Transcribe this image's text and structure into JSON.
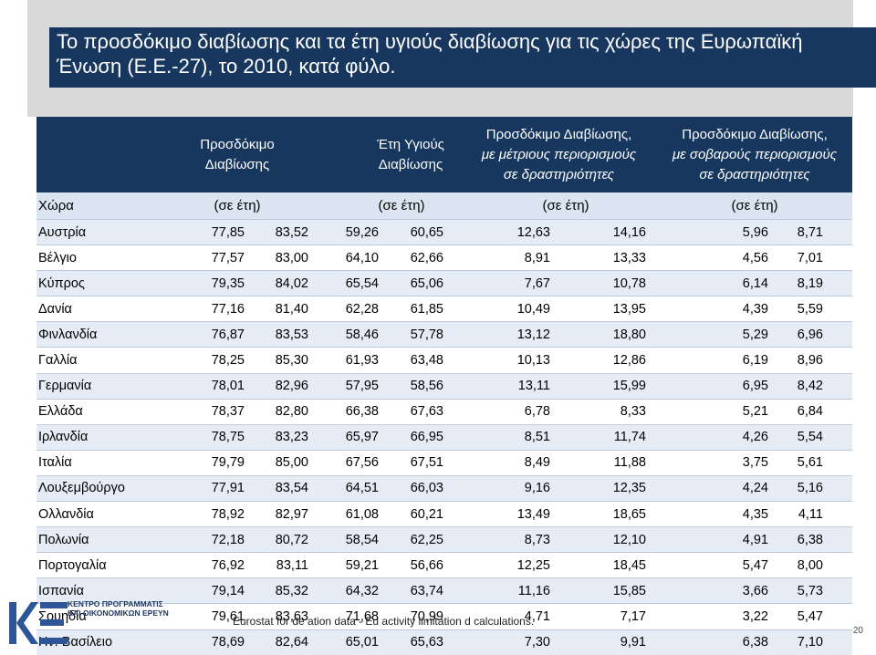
{
  "title": "Το προσδόκιμο διαβίωσης και τα έτη υγιούς διαβίωσης για τις χώρες της Ευρωπαϊκή Ένωση (Ε.Ε.-27), το 2010, κατά φύλο.",
  "headers": {
    "life_expectancy_line1": "Προσδόκιμο",
    "life_expectancy_line2": "Διαβίωσης",
    "healthy_years_line1": "Έτη Υγιούς",
    "healthy_years_line2": "Διαβίωσης",
    "moderate_line1": "Προσδόκιμο Διαβίωσης,",
    "moderate_line2": "με μέτριους περιορισμούς",
    "moderate_line3": "σε δραστηριότητες",
    "severe_line1": "Προσδόκιμο Διαβίωσης,",
    "severe_line2": "με σοβαρούς περιορισμούς",
    "severe_line3": "σε δραστηριότητες"
  },
  "units": {
    "country": "Χώρα",
    "u1": "(σε έτη)",
    "u2": "(σε έτη)",
    "u3": "(σε έτη)",
    "u4": "(σε έτη)"
  },
  "rows": [
    {
      "country": "Αυστρία",
      "v": [
        "77,85",
        "83,52",
        "59,26",
        "60,65",
        "12,63",
        "14,16",
        "5,96",
        "8,71"
      ]
    },
    {
      "country": "Βέλγιο",
      "v": [
        "77,57",
        "83,00",
        "64,10",
        "62,66",
        "8,91",
        "13,33",
        "4,56",
        "7,01"
      ]
    },
    {
      "country": "Κύπρος",
      "v": [
        "79,35",
        "84,02",
        "65,54",
        "65,06",
        "7,67",
        "10,78",
        "6,14",
        "8,19"
      ]
    },
    {
      "country": "Δανία",
      "v": [
        "77,16",
        "81,40",
        "62,28",
        "61,85",
        "10,49",
        "13,95",
        "4,39",
        "5,59"
      ]
    },
    {
      "country": "Φινλανδία",
      "v": [
        "76,87",
        "83,53",
        "58,46",
        "57,78",
        "13,12",
        "18,80",
        "5,29",
        "6,96"
      ]
    },
    {
      "country": "Γαλλία",
      "v": [
        "78,25",
        "85,30",
        "61,93",
        "63,48",
        "10,13",
        "12,86",
        "6,19",
        "8,96"
      ]
    },
    {
      "country": "Γερμανία",
      "v": [
        "78,01",
        "82,96",
        "57,95",
        "58,56",
        "13,11",
        "15,99",
        "6,95",
        "8,42"
      ]
    },
    {
      "country": "Ελλάδα",
      "v": [
        "78,37",
        "82,80",
        "66,38",
        "67,63",
        "6,78",
        "8,33",
        "5,21",
        "6,84"
      ]
    },
    {
      "country": "Ιρλανδία",
      "v": [
        "78,75",
        "83,23",
        "65,97",
        "66,95",
        "8,51",
        "11,74",
        "4,26",
        "5,54"
      ]
    },
    {
      "country": "Ιταλία",
      "v": [
        "79,79",
        "85,00",
        "67,56",
        "67,51",
        "8,49",
        "11,88",
        "3,75",
        "5,61"
      ]
    },
    {
      "country": "Λουξεμβούργο",
      "v": [
        "77,91",
        "83,54",
        "64,51",
        "66,03",
        "9,16",
        "12,35",
        "4,24",
        "5,16"
      ]
    },
    {
      "country": "Ολλανδία",
      "v": [
        "78,92",
        "82,97",
        "61,08",
        "60,21",
        "13,49",
        "18,65",
        "4,35",
        "4,11"
      ]
    },
    {
      "country": "Πολωνία",
      "v": [
        "72,18",
        "80,72",
        "58,54",
        "62,25",
        "8,73",
        "12,10",
        "4,91",
        "6,38"
      ]
    },
    {
      "country": "Πορτογαλία",
      "v": [
        "76,92",
        "83,11",
        "59,21",
        "56,66",
        "12,25",
        "18,45",
        "5,47",
        "8,00"
      ]
    },
    {
      "country": "Ισπανία",
      "v": [
        "79,14",
        "85,32",
        "64,32",
        "63,74",
        "11,16",
        "15,85",
        "3,66",
        "5,73"
      ]
    },
    {
      "country": "Σουηδία",
      "v": [
        "79,61",
        "83,63",
        "71,68",
        "70,99",
        "4,71",
        "7,17",
        "3,22",
        "5,47"
      ]
    },
    {
      "country": "Ην. Βασίλειο",
      "v": [
        "78,69",
        "82,64",
        "65,01",
        "65,63",
        "7,30",
        "9,91",
        "6,38",
        "7,10"
      ]
    }
  ],
  "footer": {
    "source_note": "Eurostat for de          ation data - Eu                 activity limitation d                   calculations.",
    "logo_text_line1": "ΚΕΝΤΡΟ ΠΡΟΓΡΑΜΜΑΤΙΣ",
    "logo_text_line2": "ΚΑΙ ΟΙΚΟΝΟΜΙΚΩΝ ΕΡΕΥΝ",
    "page_number": "20"
  },
  "colors": {
    "header_bg": "#17375e",
    "unit_row_bg": "#dbe5f1",
    "odd_row_bg": "#e6ecf5",
    "title_shade": "#d9d9d9"
  }
}
